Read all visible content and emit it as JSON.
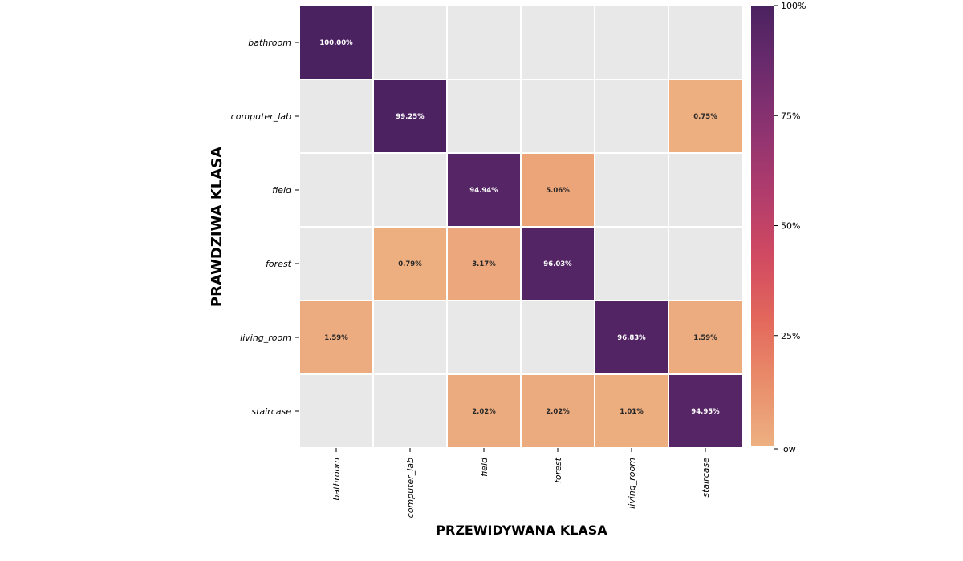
{
  "chart_data": {
    "type": "heatmap",
    "title": "",
    "xlabel": "PRZEWIDYWANA KLASA",
    "ylabel": "PRAWDZIWA KLASA",
    "x_categories": [
      "bathroom",
      "computer_lab",
      "field",
      "forest",
      "living_room",
      "staircase"
    ],
    "y_categories": [
      "bathroom",
      "computer_lab",
      "field",
      "forest",
      "living_room",
      "staircase"
    ],
    "values": [
      [
        100.0,
        0,
        0,
        0,
        0,
        0
      ],
      [
        0,
        99.25,
        0,
        0,
        0,
        0.75
      ],
      [
        0,
        0,
        94.94,
        5.06,
        0,
        0
      ],
      [
        0,
        0.79,
        3.17,
        96.03,
        0,
        0
      ],
      [
        1.59,
        0,
        0,
        0,
        96.83,
        1.59
      ],
      [
        0,
        0,
        2.02,
        2.02,
        1.01,
        94.95
      ]
    ],
    "value_format": "percent_2dp",
    "zero_cell_color": "#e8e8e8",
    "colorbar": {
      "ticks": [
        {
          "value": 100,
          "label": "100%"
        },
        {
          "value": 75,
          "label": "75%"
        },
        {
          "value": 50,
          "label": "50%"
        },
        {
          "value": 25,
          "label": "25%"
        },
        {
          "value": 0,
          "label": "low"
        }
      ],
      "colormap": "flare",
      "colors": [
        "#edb081",
        "#e98d6b",
        "#e3685c",
        "#d14a61",
        "#b13c6c",
        "#8f3371",
        "#6c2b6d",
        "#4a2260"
      ]
    },
    "grid": false,
    "legend": "colorbar-right"
  }
}
